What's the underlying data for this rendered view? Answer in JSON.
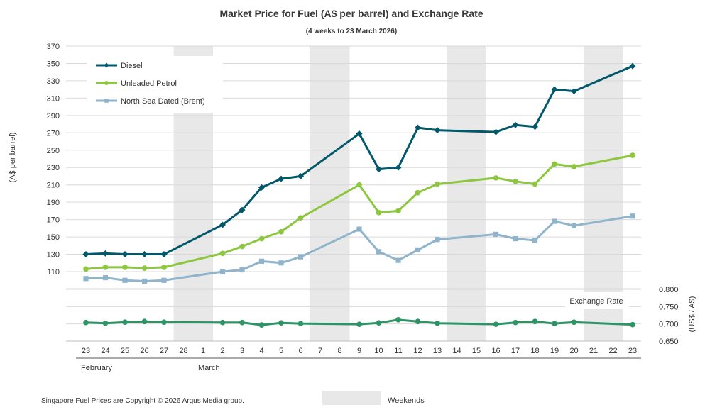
{
  "chart_data": {
    "type": "line",
    "title": "Market Price for Fuel (A$ per barrel) and Exchange Rate",
    "subtitle": "(4 weeks to 23 March 2026)",
    "ylabel": "(A$ per barrel)",
    "y2label": "(US$ / A$)",
    "ylim": [
      90,
      370
    ],
    "y_ticks": [
      "110",
      "130",
      "150",
      "170",
      "190",
      "210",
      "230",
      "250",
      "270",
      "290",
      "310",
      "330",
      "350",
      "370"
    ],
    "y2lim": [
      0.65,
      0.8
    ],
    "y2_ticks": [
      "0.650",
      "0.700",
      "0.750",
      "0.800"
    ],
    "x_labels": [
      "23",
      "24",
      "25",
      "26",
      "27",
      "28",
      "1",
      "2",
      "3",
      "4",
      "5",
      "6",
      "7",
      "8",
      "9",
      "10",
      "11",
      "12",
      "13",
      "14",
      "15",
      "16",
      "17",
      "18",
      "19",
      "20",
      "21",
      "22",
      "23"
    ],
    "month_labels": [
      {
        "label": "February",
        "at_index": 0
      },
      {
        "label": "March",
        "at_index": 6
      }
    ],
    "weekends": [
      [
        5,
        6
      ],
      [
        12,
        13
      ],
      [
        19,
        20
      ],
      [
        26,
        27
      ]
    ],
    "series": [
      {
        "name": "Diesel",
        "color": "#00586a",
        "marker": "diamond",
        "axis": "left",
        "values": [
          130,
          131,
          130,
          130,
          130,
          null,
          null,
          164,
          181,
          207,
          217,
          220,
          null,
          null,
          269,
          228,
          230,
          276,
          273,
          null,
          null,
          271,
          279,
          277,
          320,
          318,
          null,
          null,
          347
        ]
      },
      {
        "name": "Unleaded Petrol",
        "color": "#8dc63f",
        "marker": "circle",
        "axis": "left",
        "values": [
          113,
          115,
          115,
          114,
          115,
          null,
          null,
          131,
          139,
          148,
          156,
          172,
          null,
          null,
          210,
          178,
          180,
          201,
          211,
          null,
          null,
          218,
          214,
          211,
          234,
          231,
          null,
          null,
          244
        ]
      },
      {
        "name": "North Sea Dated (Brent)",
        "color": "#8fb4cc",
        "marker": "square",
        "axis": "left",
        "values": [
          102,
          103,
          100,
          99,
          100,
          null,
          null,
          110,
          112,
          122,
          120,
          127,
          null,
          null,
          159,
          133,
          123,
          135,
          147,
          null,
          null,
          153,
          148,
          146,
          168,
          163,
          null,
          null,
          174
        ]
      },
      {
        "name": "Exchange Rate",
        "color": "#2e9466",
        "marker": "circle",
        "axis": "right",
        "values": [
          0.704,
          0.702,
          0.705,
          0.707,
          0.705,
          null,
          null,
          0.704,
          0.704,
          0.697,
          0.703,
          0.701,
          null,
          null,
          0.699,
          0.703,
          0.712,
          0.707,
          0.702,
          null,
          null,
          0.699,
          0.704,
          0.707,
          0.701,
          0.705,
          null,
          null,
          0.698
        ]
      }
    ],
    "legend": [
      "Diesel",
      "Unleaded Petrol",
      "North Sea Dated (Brent)"
    ],
    "exchange_rate_label": "Exchange Rate",
    "weekend_legend_label": "Weekends",
    "weekend_color": "#e8e8e8",
    "gridline_color": "#d9d9d9"
  },
  "footer": {
    "copyright": "Singapore Fuel Prices are Copyright © 2026 Argus Media group."
  }
}
